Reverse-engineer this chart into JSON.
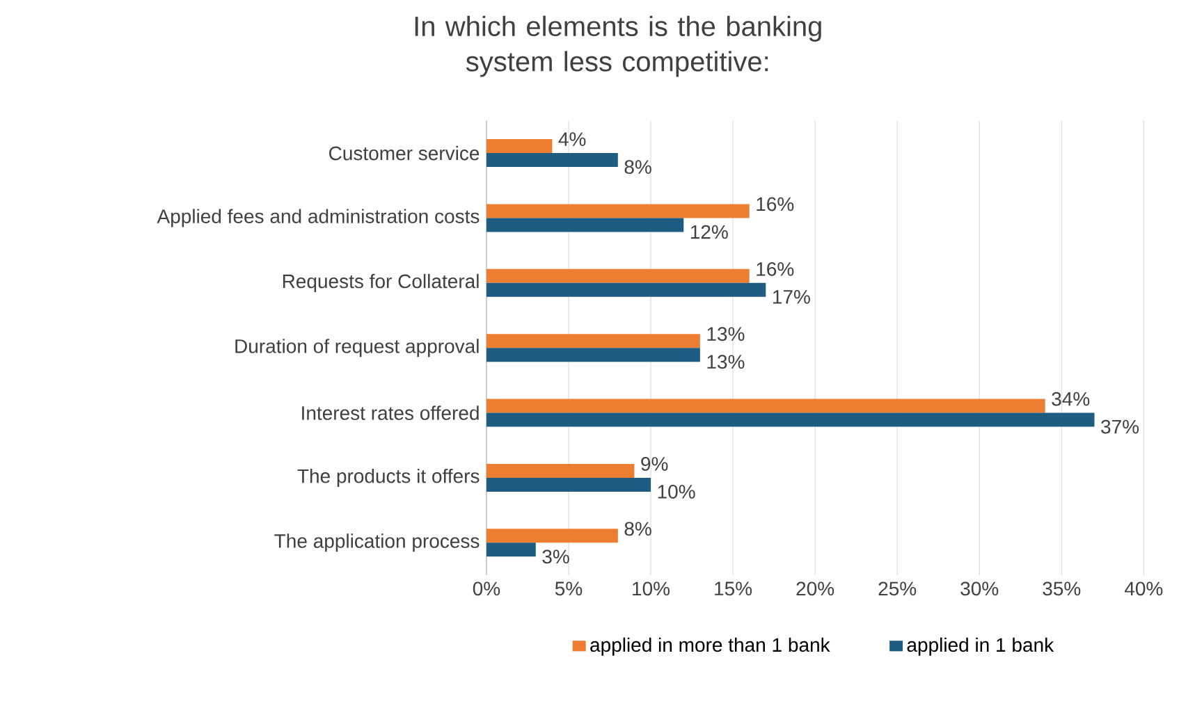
{
  "chart_data": {
    "type": "bar",
    "orientation": "horizontal",
    "title": "In which elements is the banking system less competitive:",
    "categories": [
      "Customer service",
      "Applied fees and administration costs",
      "Requests for Collateral",
      "Duration of request approval",
      "Interest rates offered",
      "The products it offers",
      "The application process"
    ],
    "series": [
      {
        "name": "applied in more than 1 bank",
        "color": "#ed7d31",
        "values": [
          4,
          16,
          16,
          13,
          34,
          9,
          8
        ],
        "value_labels": [
          "4%",
          "16%",
          "16%",
          "13%",
          "34%",
          "9%",
          "8%"
        ]
      },
      {
        "name": "applied in 1 bank",
        "color": "#1f5c82",
        "values": [
          8,
          12,
          17,
          13,
          37,
          10,
          3
        ],
        "value_labels": [
          "8%",
          "12%",
          "17%",
          "13%",
          "37%",
          "10%",
          "3%"
        ]
      }
    ],
    "xlim": [
      0,
      40
    ],
    "xticks": [
      {
        "value": 0,
        "label": "0%"
      },
      {
        "value": 5,
        "label": "5%"
      },
      {
        "value": 10,
        "label": "10%"
      },
      {
        "value": 15,
        "label": "15%"
      },
      {
        "value": 20,
        "label": "20%"
      },
      {
        "value": 25,
        "label": "25%"
      },
      {
        "value": 30,
        "label": "30%"
      },
      {
        "value": 35,
        "label": "35%"
      },
      {
        "value": 40,
        "label": "40%"
      }
    ],
    "grid": "x",
    "legend": "bottom"
  }
}
